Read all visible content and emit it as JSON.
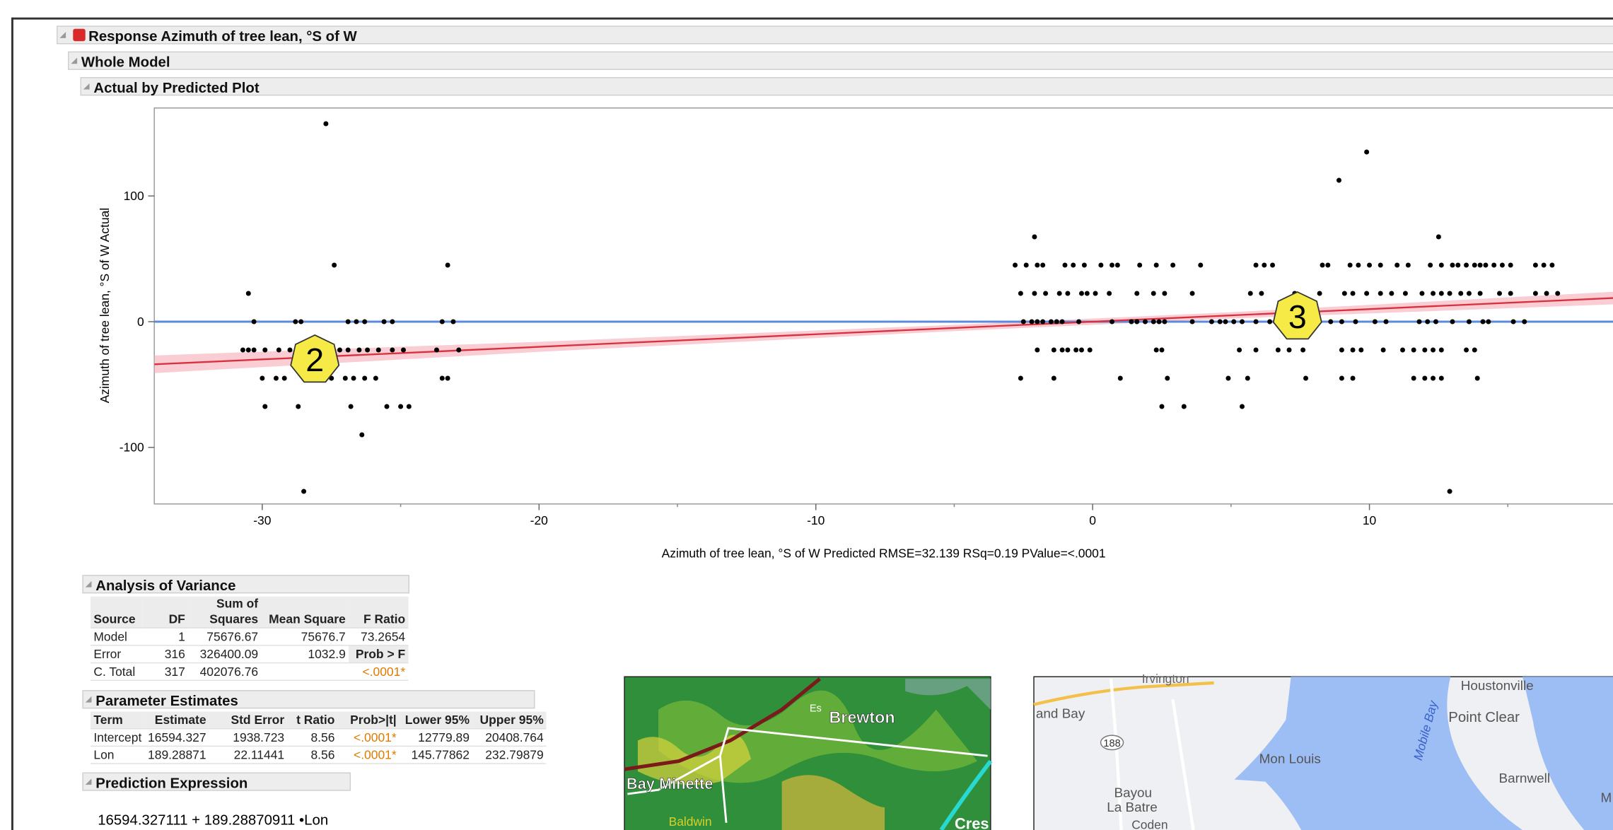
{
  "report": {
    "title": "Response Azimuth of tree lean, °S of W",
    "whole_model": "Whole Model"
  },
  "plot": {
    "type": "scatter",
    "title": "Actual by Predicted Plot",
    "ylabel": "Azimuth of tree lean, °S of W Actual",
    "xlabel": "Azimuth of tree lean, °S of W Predicted RMSE=32.139 RSq=0.19 PValue=<.0001",
    "xlim": [
      -33.9,
      18.8
    ],
    "ylim": [
      -145,
      170
    ],
    "xticks": [
      -30,
      -20,
      -10,
      0,
      10
    ],
    "xticks_minor": [
      -25,
      -15,
      -5,
      5,
      15
    ],
    "yticks": [
      -100,
      0,
      100
    ],
    "mean_line": 0,
    "mean_color": "#5b8bde",
    "fit_color": "#d9303e",
    "band_color": "#f7b8c0",
    "point_color": "#000000",
    "fit_x": [
      -33.9,
      18.8
    ],
    "fit_y": [
      -33.9,
      18.8
    ],
    "band_x": [
      -33.9,
      -20,
      -5,
      5,
      18.8
    ],
    "band_lower": [
      -40.9,
      -24,
      -7.5,
      2.5,
      13.8
    ],
    "band_upper": [
      -26.9,
      -16,
      -2.5,
      7.5,
      23.8
    ],
    "points": [
      [
        -30.5,
        22.5
      ],
      [
        -30.3,
        0
      ],
      [
        -28.8,
        0
      ],
      [
        -28.6,
        0
      ],
      [
        -26.9,
        0
      ],
      [
        -26.6,
        0
      ],
      [
        -26.3,
        0
      ],
      [
        -25.6,
        0
      ],
      [
        -25.3,
        0
      ],
      [
        -23.5,
        0
      ],
      [
        -23.1,
        0
      ],
      [
        -30.7,
        -22.5
      ],
      [
        -30.5,
        -22.5
      ],
      [
        -30.3,
        -22.5
      ],
      [
        -29.9,
        -22.5
      ],
      [
        -29.4,
        -22.5
      ],
      [
        -29.0,
        -22.5
      ],
      [
        -28.6,
        -22.5
      ],
      [
        -28.3,
        -22.5
      ],
      [
        -27.9,
        -22.5
      ],
      [
        -27.2,
        -22.5
      ],
      [
        -26.9,
        -22.5
      ],
      [
        -26.5,
        -22.5
      ],
      [
        -26.2,
        -22.5
      ],
      [
        -25.8,
        -22.5
      ],
      [
        -25.3,
        -22.5
      ],
      [
        -24.9,
        -22.5
      ],
      [
        -23.7,
        -22.5
      ],
      [
        -22.9,
        -22.5
      ],
      [
        -30.0,
        -45
      ],
      [
        -29.5,
        -45
      ],
      [
        -29.2,
        -45
      ],
      [
        -28.5,
        -45
      ],
      [
        -28.0,
        -45
      ],
      [
        -27.5,
        -45
      ],
      [
        -27.0,
        -45
      ],
      [
        -26.7,
        -45
      ],
      [
        -26.3,
        -45
      ],
      [
        -25.9,
        -45
      ],
      [
        -23.5,
        -45
      ],
      [
        -23.3,
        -45
      ],
      [
        -29.9,
        -67.5
      ],
      [
        -28.7,
        -67.5
      ],
      [
        -26.8,
        -67.5
      ],
      [
        -25.5,
        -67.5
      ],
      [
        -25.0,
        -67.5
      ],
      [
        -24.7,
        -67.5
      ],
      [
        -26.4,
        -90
      ],
      [
        -27.4,
        45
      ],
      [
        -23.3,
        45
      ],
      [
        -27.7,
        157.5
      ],
      [
        -28.5,
        -135
      ],
      [
        -2.1,
        67.5
      ],
      [
        12.5,
        67.5
      ],
      [
        -2.8,
        45
      ],
      [
        -2.4,
        45
      ],
      [
        -2.0,
        45
      ],
      [
        -1.8,
        45
      ],
      [
        -1.0,
        45
      ],
      [
        -0.7,
        45
      ],
      [
        -0.3,
        45
      ],
      [
        0.3,
        45
      ],
      [
        0.7,
        45
      ],
      [
        0.9,
        45
      ],
      [
        1.7,
        45
      ],
      [
        2.3,
        45
      ],
      [
        2.9,
        45
      ],
      [
        3.9,
        45
      ],
      [
        5.9,
        45
      ],
      [
        6.2,
        45
      ],
      [
        6.5,
        45
      ],
      [
        8.3,
        45
      ],
      [
        8.5,
        45
      ],
      [
        9.3,
        45
      ],
      [
        9.6,
        45
      ],
      [
        10.0,
        45
      ],
      [
        10.4,
        45
      ],
      [
        11.0,
        45
      ],
      [
        11.4,
        45
      ],
      [
        12.2,
        45
      ],
      [
        12.6,
        45
      ],
      [
        13.0,
        45
      ],
      [
        13.2,
        45
      ],
      [
        13.5,
        45
      ],
      [
        13.8,
        45
      ],
      [
        14.0,
        45
      ],
      [
        14.2,
        45
      ],
      [
        14.5,
        45
      ],
      [
        14.8,
        45
      ],
      [
        15.1,
        45
      ],
      [
        16.0,
        45
      ],
      [
        16.3,
        45
      ],
      [
        16.6,
        45
      ],
      [
        -2.6,
        22.5
      ],
      [
        -2.1,
        22.5
      ],
      [
        -1.7,
        22.5
      ],
      [
        -1.2,
        22.5
      ],
      [
        -0.9,
        22.5
      ],
      [
        -0.4,
        22.5
      ],
      [
        -0.2,
        22.5
      ],
      [
        0.1,
        22.5
      ],
      [
        0.6,
        22.5
      ],
      [
        1.6,
        22.5
      ],
      [
        2.2,
        22.5
      ],
      [
        2.6,
        22.5
      ],
      [
        3.6,
        22.5
      ],
      [
        5.7,
        22.5
      ],
      [
        6.1,
        22.5
      ],
      [
        7.3,
        22.5
      ],
      [
        8.2,
        22.5
      ],
      [
        9.1,
        22.5
      ],
      [
        9.4,
        22.5
      ],
      [
        9.9,
        22.5
      ],
      [
        10.4,
        22.5
      ],
      [
        10.8,
        22.5
      ],
      [
        11.3,
        22.5
      ],
      [
        11.9,
        22.5
      ],
      [
        12.3,
        22.5
      ],
      [
        12.6,
        22.5
      ],
      [
        12.9,
        22.5
      ],
      [
        13.3,
        22.5
      ],
      [
        13.6,
        22.5
      ],
      [
        14.0,
        22.5
      ],
      [
        14.7,
        22.5
      ],
      [
        15.1,
        22.5
      ],
      [
        16.0,
        22.5
      ],
      [
        16.4,
        22.5
      ],
      [
        16.8,
        22.5
      ],
      [
        -2.5,
        0
      ],
      [
        -2.2,
        0
      ],
      [
        -2.0,
        0
      ],
      [
        -1.8,
        0
      ],
      [
        -1.5,
        0
      ],
      [
        -1.3,
        0
      ],
      [
        -1.1,
        0
      ],
      [
        -0.5,
        0
      ],
      [
        0.7,
        0
      ],
      [
        1.4,
        0
      ],
      [
        1.6,
        0
      ],
      [
        1.9,
        0
      ],
      [
        2.2,
        0
      ],
      [
        2.4,
        0
      ],
      [
        2.6,
        0
      ],
      [
        3.6,
        0
      ],
      [
        4.3,
        0
      ],
      [
        4.6,
        0
      ],
      [
        4.8,
        0
      ],
      [
        5.1,
        0
      ],
      [
        5.4,
        0
      ],
      [
        5.9,
        0
      ],
      [
        6.4,
        0
      ],
      [
        6.6,
        0
      ],
      [
        7.2,
        0
      ],
      [
        7.7,
        0
      ],
      [
        8.1,
        0
      ],
      [
        8.6,
        0
      ],
      [
        9.0,
        0
      ],
      [
        9.5,
        0
      ],
      [
        10.2,
        0
      ],
      [
        10.6,
        0
      ],
      [
        11.8,
        0
      ],
      [
        12.1,
        0
      ],
      [
        12.4,
        0
      ],
      [
        13.0,
        0
      ],
      [
        13.6,
        0
      ],
      [
        14.1,
        0
      ],
      [
        14.3,
        0
      ],
      [
        15.2,
        0
      ],
      [
        15.6,
        0
      ],
      [
        -2.0,
        -22.5
      ],
      [
        -1.4,
        -22.5
      ],
      [
        -1.1,
        -22.5
      ],
      [
        -0.9,
        -22.5
      ],
      [
        -0.6,
        -22.5
      ],
      [
        -0.4,
        -22.5
      ],
      [
        -0.1,
        -22.5
      ],
      [
        2.3,
        -22.5
      ],
      [
        2.5,
        -22.5
      ],
      [
        5.3,
        -22.5
      ],
      [
        5.9,
        -22.5
      ],
      [
        6.7,
        -22.5
      ],
      [
        7.1,
        -22.5
      ],
      [
        7.6,
        -22.5
      ],
      [
        9.0,
        -22.5
      ],
      [
        9.4,
        -22.5
      ],
      [
        9.7,
        -22.5
      ],
      [
        10.5,
        -22.5
      ],
      [
        11.2,
        -22.5
      ],
      [
        11.6,
        -22.5
      ],
      [
        12.0,
        -22.5
      ],
      [
        12.3,
        -22.5
      ],
      [
        12.6,
        -22.5
      ],
      [
        13.5,
        -22.5
      ],
      [
        13.8,
        -22.5
      ],
      [
        -2.6,
        -45
      ],
      [
        -1.4,
        -45
      ],
      [
        1.0,
        -45
      ],
      [
        2.7,
        -45
      ],
      [
        4.9,
        -45
      ],
      [
        5.6,
        -45
      ],
      [
        7.7,
        -45
      ],
      [
        9.0,
        -45
      ],
      [
        9.4,
        -45
      ],
      [
        11.6,
        -45
      ],
      [
        12.0,
        -45
      ],
      [
        12.3,
        -45
      ],
      [
        12.6,
        -45
      ],
      [
        13.9,
        -45
      ],
      [
        2.5,
        -67.5
      ],
      [
        3.3,
        -67.5
      ],
      [
        5.4,
        -67.5
      ],
      [
        8.9,
        112.5
      ],
      [
        9.9,
        135
      ],
      [
        12.9,
        -135
      ]
    ],
    "markers": [
      {
        "label": "2",
        "x": -28.1,
        "y": -30.3
      },
      {
        "label": "3",
        "x": 7.4,
        "y": 4
      }
    ]
  },
  "anova": {
    "title": "Analysis of Variance",
    "columns": [
      "Source",
      "DF",
      "Sum of Squares",
      "Mean Square",
      "F Ratio"
    ],
    "rows": [
      [
        "Model",
        "1",
        "75676.67",
        "75676.7",
        "73.2654"
      ],
      [
        "Error",
        "316",
        "326400.09",
        "1032.9",
        "Prob > F"
      ],
      [
        "C. Total",
        "317",
        "402076.76",
        null,
        "<.0001*"
      ]
    ]
  },
  "params": {
    "title": "Parameter Estimates",
    "columns": [
      "Term",
      "Estimate",
      "Std Error",
      "t Ratio",
      "Prob>|t|",
      "Lower 95%",
      "Upper 95%"
    ],
    "rows": [
      [
        "Intercept",
        "16594.327",
        "1938.723",
        "8.56",
        "<.0001*",
        "12779.89",
        "20408.764"
      ],
      [
        "Lon",
        "189.28871",
        "22.11441",
        "8.56",
        "<.0001*",
        "145.77862",
        "232.79879"
      ]
    ]
  },
  "prediction": {
    "title": "Prediction Expression",
    "expression": "16594.327111 + 189.28870911 •Lon"
  },
  "radar_map": {
    "labels": [
      "Es",
      "Brewton",
      "Bay Minette",
      "Baldwin",
      "Cres"
    ]
  },
  "road_map": {
    "labels": [
      "Irvington",
      "and Bay",
      "188",
      "Mon Louis",
      "Mobile Bay",
      "Houstonville",
      "Point Clear",
      "Barnwell",
      "Bayou",
      "La Batre",
      "Coden",
      "M"
    ]
  }
}
